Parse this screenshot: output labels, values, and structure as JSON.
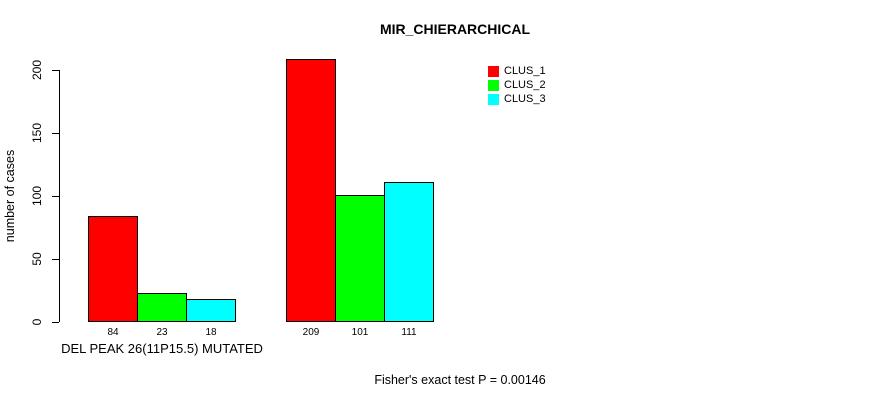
{
  "chart_data": {
    "type": "bar",
    "title": "MIR_CHIERARCHICAL",
    "categories": [
      "DEL PEAK 26(11P15.5) MUTATED",
      ""
    ],
    "series": [
      {
        "name": "CLUS_1",
        "color": "#ff0000",
        "values": [
          84,
          209
        ]
      },
      {
        "name": "CLUS_2",
        "color": "#00ff00",
        "values": [
          23,
          101
        ]
      },
      {
        "name": "CLUS_3",
        "color": "#00ffff",
        "values": [
          18,
          111
        ]
      }
    ],
    "xlabel": "",
    "ylabel": "number of cases",
    "ylim": [
      0,
      200
    ],
    "yticks": [
      0,
      50,
      100,
      150,
      200
    ],
    "grid": false,
    "bar_value_labels_shown": true,
    "legend": {
      "position": "top-right",
      "entries": [
        "CLUS_1",
        "CLUS_2",
        "CLUS_3"
      ]
    },
    "annotation": "Fisher's exact test P = 0.00146",
    "axis_color": "#000000",
    "background_color": "#ffffff"
  }
}
